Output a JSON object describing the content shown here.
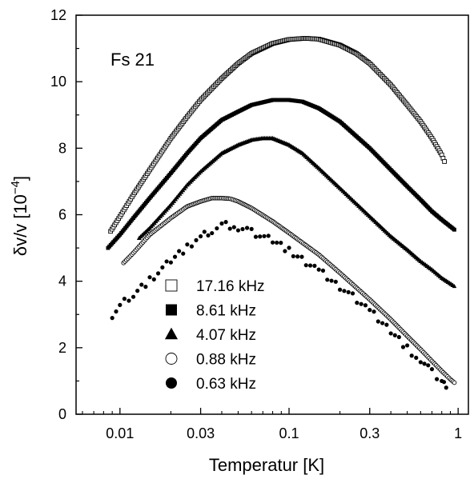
{
  "chart_data": {
    "type": "scatter",
    "sample_label": "Fs 21",
    "xlabel": "Temperatur [K]",
    "ylabel_main": "δv/v [10",
    "ylabel_exp": "−4",
    "ylabel_close": "]",
    "x_scale": "log",
    "xlim": [
      0.0055,
      1.15
    ],
    "ylim": [
      0,
      12
    ],
    "x_ticks": [
      {
        "value": 0.01,
        "label": "0.01"
      },
      {
        "value": 0.03,
        "label": "0.03"
      },
      {
        "value": 0.1,
        "label": "0.1"
      },
      {
        "value": 0.3,
        "label": "0.3"
      },
      {
        "value": 1,
        "label": "1"
      }
    ],
    "y_ticks": [
      {
        "value": 0,
        "label": "0"
      },
      {
        "value": 2,
        "label": "2"
      },
      {
        "value": 4,
        "label": "4"
      },
      {
        "value": 6,
        "label": "6"
      },
      {
        "value": 8,
        "label": "8"
      },
      {
        "value": 10,
        "label": "10"
      },
      {
        "value": 12,
        "label": "12"
      }
    ],
    "grid": false,
    "legend_position": "lower-left",
    "series": [
      {
        "name": "17.16 kHz",
        "marker": "open-square",
        "points": [
          [
            0.0088,
            5.5
          ],
          [
            0.01,
            5.95
          ],
          [
            0.012,
            6.6
          ],
          [
            0.015,
            7.35
          ],
          [
            0.02,
            8.3
          ],
          [
            0.025,
            8.95
          ],
          [
            0.03,
            9.45
          ],
          [
            0.04,
            10.1
          ],
          [
            0.05,
            10.55
          ],
          [
            0.06,
            10.85
          ],
          [
            0.08,
            11.15
          ],
          [
            0.1,
            11.27
          ],
          [
            0.12,
            11.3
          ],
          [
            0.13,
            11.3
          ],
          [
            0.15,
            11.28
          ],
          [
            0.2,
            11.1
          ],
          [
            0.25,
            10.85
          ],
          [
            0.3,
            10.55
          ],
          [
            0.4,
            9.9
          ],
          [
            0.5,
            9.3
          ],
          [
            0.6,
            8.8
          ],
          [
            0.7,
            8.3
          ],
          [
            0.8,
            7.8
          ],
          [
            0.83,
            7.6
          ]
        ]
      },
      {
        "name": "8.61 kHz",
        "marker": "filled-square",
        "points": [
          [
            0.0085,
            5.0
          ],
          [
            0.01,
            5.4
          ],
          [
            0.012,
            5.9
          ],
          [
            0.015,
            6.5
          ],
          [
            0.02,
            7.25
          ],
          [
            0.025,
            7.85
          ],
          [
            0.03,
            8.3
          ],
          [
            0.04,
            8.85
          ],
          [
            0.05,
            9.1
          ],
          [
            0.06,
            9.3
          ],
          [
            0.08,
            9.45
          ],
          [
            0.1,
            9.45
          ],
          [
            0.12,
            9.4
          ],
          [
            0.15,
            9.2
          ],
          [
            0.2,
            8.8
          ],
          [
            0.3,
            8.0
          ],
          [
            0.4,
            7.35
          ],
          [
            0.5,
            6.85
          ],
          [
            0.6,
            6.45
          ],
          [
            0.7,
            6.1
          ],
          [
            0.8,
            5.85
          ],
          [
            0.95,
            5.55
          ]
        ]
      },
      {
        "name": "4.07 kHz",
        "marker": "filled-triangle",
        "points": [
          [
            0.013,
            5.3
          ],
          [
            0.015,
            5.6
          ],
          [
            0.02,
            6.3
          ],
          [
            0.025,
            6.9
          ],
          [
            0.03,
            7.3
          ],
          [
            0.04,
            7.85
          ],
          [
            0.05,
            8.1
          ],
          [
            0.06,
            8.25
          ],
          [
            0.07,
            8.3
          ],
          [
            0.08,
            8.3
          ],
          [
            0.1,
            8.1
          ],
          [
            0.12,
            7.85
          ],
          [
            0.15,
            7.4
          ],
          [
            0.2,
            6.8
          ],
          [
            0.3,
            5.95
          ],
          [
            0.4,
            5.35
          ],
          [
            0.5,
            4.95
          ],
          [
            0.6,
            4.6
          ],
          [
            0.7,
            4.35
          ],
          [
            0.8,
            4.1
          ],
          [
            0.95,
            3.85
          ]
        ]
      },
      {
        "name": "0.88 kHz",
        "marker": "open-circle",
        "points": [
          [
            0.0105,
            4.55
          ],
          [
            0.012,
            4.85
          ],
          [
            0.015,
            5.4
          ],
          [
            0.02,
            5.9
          ],
          [
            0.025,
            6.25
          ],
          [
            0.03,
            6.4
          ],
          [
            0.035,
            6.5
          ],
          [
            0.04,
            6.5
          ],
          [
            0.045,
            6.48
          ],
          [
            0.05,
            6.4
          ],
          [
            0.06,
            6.2
          ],
          [
            0.08,
            5.8
          ],
          [
            0.1,
            5.45
          ],
          [
            0.15,
            4.8
          ],
          [
            0.2,
            4.25
          ],
          [
            0.3,
            3.45
          ],
          [
            0.4,
            2.85
          ],
          [
            0.5,
            2.35
          ],
          [
            0.6,
            1.95
          ],
          [
            0.7,
            1.6
          ],
          [
            0.8,
            1.3
          ],
          [
            0.9,
            1.05
          ],
          [
            0.95,
            0.95
          ]
        ]
      },
      {
        "name": "0.63 kHz",
        "marker": "filled-circle",
        "points": [
          [
            0.009,
            3.0
          ],
          [
            0.01,
            3.25
          ],
          [
            0.012,
            3.6
          ],
          [
            0.015,
            4.05
          ],
          [
            0.02,
            4.6
          ],
          [
            0.025,
            5.0
          ],
          [
            0.03,
            5.35
          ],
          [
            0.035,
            5.55
          ],
          [
            0.04,
            5.7
          ],
          [
            0.05,
            5.6
          ],
          [
            0.06,
            5.5
          ],
          [
            0.08,
            5.2
          ],
          [
            0.1,
            4.9
          ],
          [
            0.15,
            4.35
          ],
          [
            0.2,
            3.85
          ],
          [
            0.3,
            3.1
          ],
          [
            0.4,
            2.5
          ],
          [
            0.5,
            2.0
          ],
          [
            0.6,
            1.6
          ],
          [
            0.7,
            1.25
          ],
          [
            0.8,
            1.0
          ],
          [
            0.85,
            0.8
          ]
        ]
      }
    ]
  }
}
